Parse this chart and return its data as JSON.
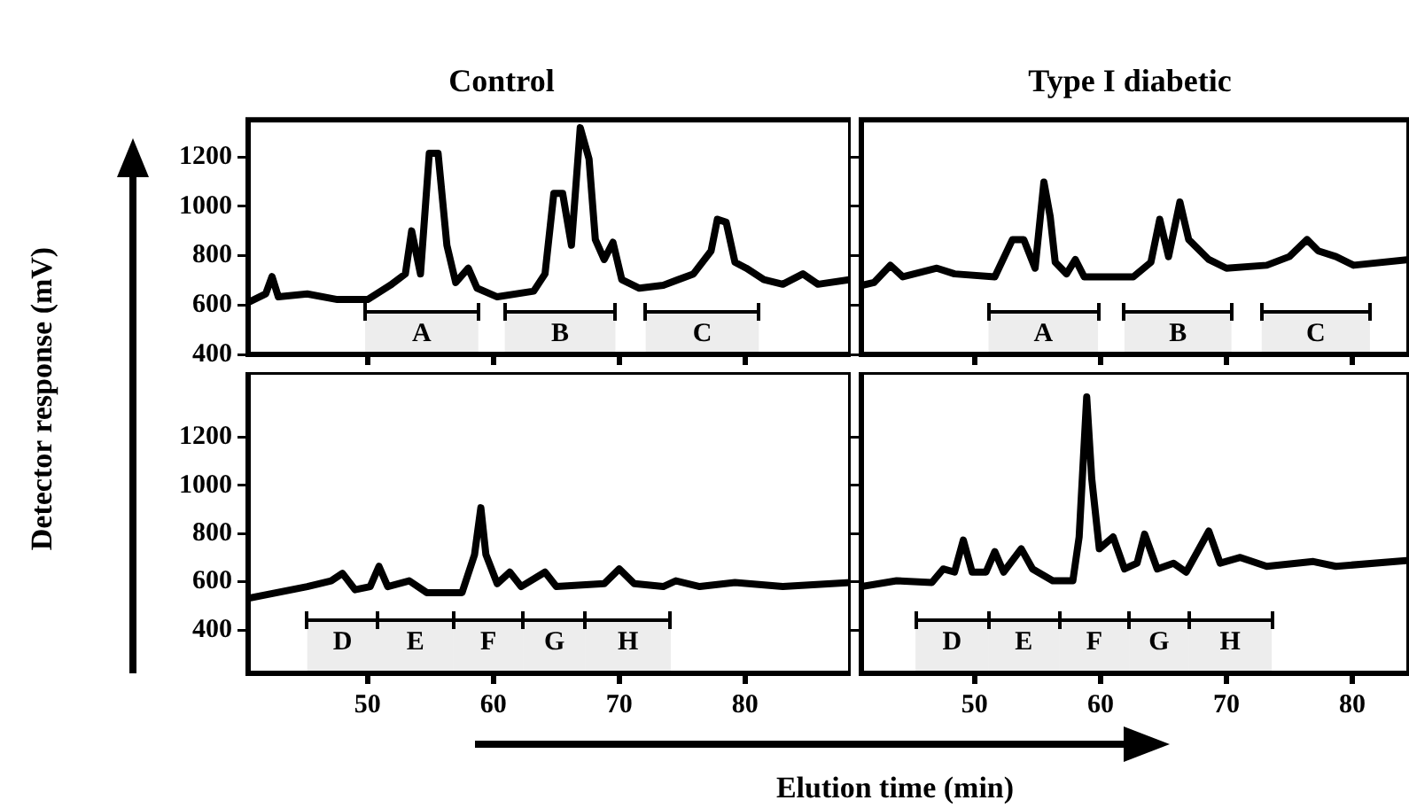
{
  "chart_data": [
    {
      "type": "line",
      "title": "Control",
      "ylabel": "Detector response (mV)",
      "xlim": [
        40.5,
        88.4
      ],
      "ylim": [
        400,
        1350
      ],
      "xticks": [
        50,
        60,
        70,
        80
      ],
      "yticks": [
        400,
        600,
        800,
        1000,
        1200
      ],
      "grid": false,
      "legend": false,
      "tick_labels": "y",
      "x": [
        40.5,
        41.9,
        42.4,
        42.9,
        45.2,
        47.6,
        50.0,
        51.8,
        53.0,
        53.5,
        54.2,
        54.9,
        55.6,
        56.3,
        57.0,
        58.0,
        58.7,
        60.3,
        63.2,
        64.1,
        64.8,
        65.5,
        66.2,
        66.9,
        67.6,
        68.1,
        68.8,
        69.5,
        70.2,
        71.6,
        73.5,
        75.9,
        77.3,
        77.8,
        78.5,
        79.2,
        80.1,
        81.5,
        83.0,
        84.6,
        85.8,
        88.4
      ],
      "series": [
        {
          "color": "#000000",
          "values": [
            610,
            645,
            715,
            633,
            645,
            622,
            622,
            680,
            726,
            900,
            726,
            1214,
            1214,
            842,
            691,
            749,
            668,
            633,
            656,
            726,
            1052,
            1052,
            842,
            1318,
            1191,
            865,
            784,
            854,
            703,
            668,
            680,
            726,
            819,
            947,
            935,
            773,
            749,
            703,
            684,
            726,
            684,
            703
          ]
        }
      ],
      "bands": [
        {
          "axis": "x",
          "from": 49.8,
          "to": 58.8,
          "label": "A",
          "color": "#000000"
        },
        {
          "axis": "x",
          "from": 60.9,
          "to": 69.7,
          "label": "B",
          "color": "#000000"
        },
        {
          "axis": "x",
          "from": 72.1,
          "to": 81.1,
          "label": "C",
          "color": "#000000"
        }
      ]
    },
    {
      "type": "line",
      "title": "Type I diabetic",
      "xlim": [
        41.0,
        84.5
      ],
      "ylim": [
        400,
        1350
      ],
      "xticks": [
        50,
        60,
        70,
        80
      ],
      "yticks": [
        400,
        600,
        800,
        1000,
        1200
      ],
      "grid": false,
      "legend": false,
      "tick_labels": false,
      "x": [
        41.0,
        42.0,
        43.3,
        44.3,
        47.0,
        48.4,
        51.6,
        53.0,
        53.9,
        54.8,
        55.5,
        56.0,
        56.4,
        57.3,
        58.0,
        58.7,
        62.6,
        64.0,
        64.7,
        65.4,
        66.3,
        67.0,
        68.6,
        70.0,
        73.2,
        75.0,
        76.4,
        77.3,
        78.7,
        80.1,
        84.5
      ],
      "series": [
        {
          "color": "#000000",
          "values": [
            679,
            691,
            761,
            714,
            749,
            726,
            714,
            865,
            865,
            749,
            1098,
            958,
            773,
            726,
            784,
            714,
            714,
            773,
            947,
            796,
            1017,
            865,
            784,
            749,
            761,
            796,
            865,
            819,
            796,
            761,
            784
          ]
        }
      ],
      "bands": [
        {
          "axis": "x",
          "from": 51.1,
          "to": 59.8,
          "label": "A",
          "color": "#000000"
        },
        {
          "axis": "x",
          "from": 61.9,
          "to": 70.4,
          "label": "B",
          "color": "#000000"
        },
        {
          "axis": "x",
          "from": 72.8,
          "to": 81.4,
          "label": "C",
          "color": "#000000"
        }
      ]
    },
    {
      "type": "line",
      "xlim": [
        40.5,
        88.4
      ],
      "ylim": [
        220,
        1470
      ],
      "xticks": [
        50,
        60,
        70,
        80
      ],
      "yticks": [
        400,
        600,
        800,
        1000,
        1200
      ],
      "grid": false,
      "legend": false,
      "x": [
        40.5,
        45.2,
        47.1,
        48.0,
        49.0,
        50.2,
        50.9,
        51.6,
        53.3,
        54.7,
        57.5,
        58.5,
        59.0,
        59.4,
        60.3,
        61.3,
        62.2,
        64.1,
        65.0,
        68.8,
        70.0,
        71.2,
        73.5,
        74.5,
        76.4,
        79.2,
        83.0,
        88.4
      ],
      "series": [
        {
          "color": "#000000",
          "values": [
            531,
            580,
            604,
            635,
            567,
            580,
            664,
            580,
            604,
            555,
            555,
            713,
            907,
            713,
            592,
            640,
            580,
            640,
            580,
            592,
            653,
            592,
            580,
            604,
            580,
            597,
            580,
            597
          ]
        }
      ],
      "bands": [
        {
          "axis": "x",
          "from": 45.2,
          "to": 50.8,
          "label": "D",
          "color": "#000000"
        },
        {
          "axis": "x",
          "from": 50.8,
          "to": 56.8,
          "label": "E",
          "color": "#000000"
        },
        {
          "axis": "x",
          "from": 56.8,
          "to": 62.4,
          "label": "F",
          "color": "#000000"
        },
        {
          "axis": "x",
          "from": 62.4,
          "to": 67.3,
          "label": "G",
          "color": "#000000"
        },
        {
          "axis": "x",
          "from": 67.3,
          "to": 74.1,
          "label": "H",
          "color": "#000000"
        }
      ]
    },
    {
      "type": "line",
      "xlabel": "Elution time (min)",
      "xlim": [
        41.0,
        84.5
      ],
      "ylim": [
        220,
        1470
      ],
      "xticks": [
        50,
        60,
        70,
        80
      ],
      "yticks": [
        400,
        600,
        800,
        1000,
        1200
      ],
      "grid": false,
      "legend": false,
      "tick_labels": "x",
      "x": [
        41.0,
        43.8,
        46.6,
        47.5,
        48.4,
        49.1,
        49.8,
        50.9,
        51.6,
        52.3,
        53.7,
        54.6,
        56.2,
        57.8,
        58.3,
        58.9,
        59.3,
        59.9,
        61.0,
        61.9,
        62.9,
        63.5,
        64.5,
        65.8,
        66.8,
        68.6,
        69.5,
        71.1,
        73.2,
        76.9,
        78.7,
        84.5
      ],
      "series": [
        {
          "color": "#000000",
          "values": [
            580,
            604,
            597,
            653,
            640,
            773,
            640,
            640,
            725,
            640,
            737,
            653,
            604,
            604,
            786,
            1367,
            1028,
            737,
            786,
            653,
            677,
            798,
            653,
            677,
            640,
            810,
            677,
            701,
            664,
            684,
            664,
            689
          ]
        }
      ],
      "bands": [
        {
          "axis": "x",
          "from": 45.3,
          "to": 51.1,
          "label": "D",
          "color": "#000000"
        },
        {
          "axis": "x",
          "from": 51.1,
          "to": 56.7,
          "label": "E",
          "color": "#000000"
        },
        {
          "axis": "x",
          "from": 56.7,
          "to": 62.3,
          "label": "F",
          "color": "#000000"
        },
        {
          "axis": "x",
          "from": 62.3,
          "to": 67.0,
          "label": "G",
          "color": "#000000"
        },
        {
          "axis": "x",
          "from": 67.0,
          "to": 73.6,
          "label": "H",
          "color": "#000000"
        }
      ]
    }
  ]
}
